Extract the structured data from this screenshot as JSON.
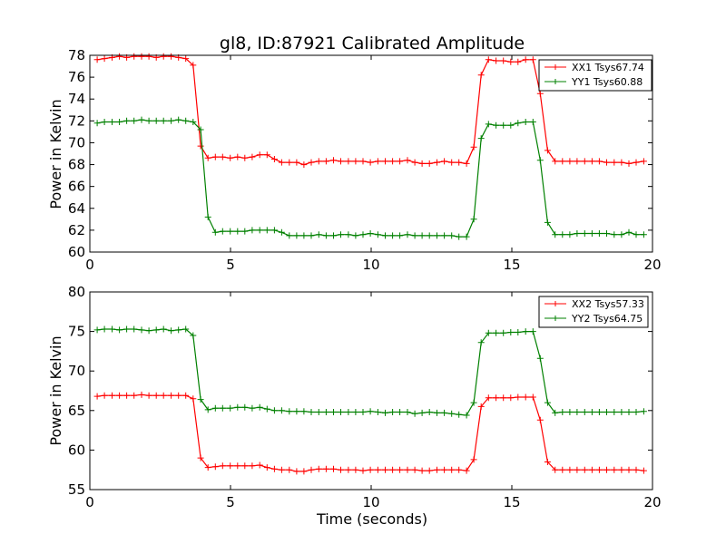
{
  "chart_data": [
    {
      "type": "line",
      "title": "gl8, ID:87921 Calibrated Amplitude",
      "xlabel": "",
      "ylabel": "Power in Kelvin",
      "xlim": [
        0,
        20
      ],
      "ylim": [
        60,
        78
      ],
      "xticks": [
        "0",
        "5",
        "10",
        "15",
        "20"
      ],
      "yticks": [
        "60",
        "62",
        "64",
        "66",
        "68",
        "70",
        "72",
        "74",
        "76",
        "78"
      ],
      "grid": false,
      "legend_position": "top-right",
      "x": [
        0.26,
        0.52,
        0.79,
        1.05,
        1.31,
        1.57,
        1.84,
        2.1,
        2.36,
        2.62,
        2.89,
        3.15,
        3.41,
        3.67,
        3.94,
        4.2,
        4.46,
        4.72,
        4.99,
        5.25,
        5.51,
        5.77,
        6.04,
        6.3,
        6.56,
        6.82,
        7.09,
        7.35,
        7.61,
        7.87,
        8.14,
        8.4,
        8.66,
        8.92,
        9.19,
        9.45,
        9.71,
        9.97,
        10.24,
        10.5,
        10.76,
        11.02,
        11.29,
        11.55,
        11.81,
        12.07,
        12.34,
        12.6,
        12.86,
        13.12,
        13.39,
        13.65,
        13.91,
        14.17,
        14.44,
        14.7,
        14.96,
        15.22,
        15.49,
        15.75,
        16.01,
        16.27,
        16.54,
        16.8,
        17.06,
        17.32,
        17.59,
        17.85,
        18.11,
        18.37,
        18.64,
        18.9,
        19.16,
        19.42,
        19.69
      ],
      "series": [
        {
          "name": "XX1 Tsys67.74",
          "color": "#ff0000",
          "values": [
            77.6,
            77.7,
            77.8,
            77.9,
            77.8,
            77.9,
            77.9,
            77.9,
            77.8,
            77.9,
            77.9,
            77.8,
            77.7,
            77.1,
            69.7,
            68.6,
            68.7,
            68.7,
            68.6,
            68.7,
            68.6,
            68.7,
            68.9,
            68.9,
            68.5,
            68.2,
            68.2,
            68.2,
            68.0,
            68.2,
            68.3,
            68.3,
            68.4,
            68.3,
            68.3,
            68.3,
            68.3,
            68.2,
            68.3,
            68.3,
            68.3,
            68.3,
            68.4,
            68.2,
            68.1,
            68.1,
            68.2,
            68.3,
            68.2,
            68.2,
            68.1,
            69.6,
            76.2,
            77.6,
            77.5,
            77.5,
            77.4,
            77.4,
            77.6,
            77.6,
            74.5,
            69.3,
            68.3,
            68.3,
            68.3,
            68.3,
            68.3,
            68.3,
            68.3,
            68.2,
            68.2,
            68.2,
            68.1,
            68.2,
            68.3
          ]
        },
        {
          "name": "YY1 Tsys60.88",
          "color": "#008000",
          "values": [
            71.8,
            71.9,
            71.9,
            71.9,
            72.0,
            72.0,
            72.1,
            72.0,
            72.0,
            72.0,
            72.0,
            72.1,
            72.0,
            71.9,
            71.2,
            63.2,
            61.8,
            61.9,
            61.9,
            61.9,
            61.9,
            62.0,
            62.0,
            62.0,
            62.0,
            61.8,
            61.5,
            61.5,
            61.5,
            61.5,
            61.6,
            61.5,
            61.5,
            61.6,
            61.6,
            61.5,
            61.6,
            61.7,
            61.6,
            61.5,
            61.5,
            61.5,
            61.6,
            61.5,
            61.5,
            61.5,
            61.5,
            61.5,
            61.5,
            61.4,
            61.4,
            63.0,
            70.4,
            71.7,
            71.6,
            71.6,
            71.6,
            71.8,
            71.9,
            71.9,
            68.4,
            62.7,
            61.6,
            61.6,
            61.6,
            61.7,
            61.7,
            61.7,
            61.7,
            61.7,
            61.6,
            61.6,
            61.8,
            61.6,
            61.6
          ]
        }
      ]
    },
    {
      "type": "line",
      "title": "",
      "xlabel": "Time (seconds)",
      "ylabel": "Power in Kelvin",
      "xlim": [
        0,
        20
      ],
      "ylim": [
        55,
        80
      ],
      "xticks": [
        "0",
        "5",
        "10",
        "15",
        "20"
      ],
      "yticks": [
        "55",
        "60",
        "65",
        "70",
        "75",
        "80"
      ],
      "grid": false,
      "legend_position": "top-right",
      "x": [
        0.26,
        0.52,
        0.79,
        1.05,
        1.31,
        1.57,
        1.84,
        2.1,
        2.36,
        2.62,
        2.89,
        3.15,
        3.41,
        3.67,
        3.94,
        4.2,
        4.46,
        4.72,
        4.99,
        5.25,
        5.51,
        5.77,
        6.04,
        6.3,
        6.56,
        6.82,
        7.09,
        7.35,
        7.61,
        7.87,
        8.14,
        8.4,
        8.66,
        8.92,
        9.19,
        9.45,
        9.71,
        9.97,
        10.24,
        10.5,
        10.76,
        11.02,
        11.29,
        11.55,
        11.81,
        12.07,
        12.34,
        12.6,
        12.86,
        13.12,
        13.39,
        13.65,
        13.91,
        14.17,
        14.44,
        14.7,
        14.96,
        15.22,
        15.49,
        15.75,
        16.01,
        16.27,
        16.54,
        16.8,
        17.06,
        17.32,
        17.59,
        17.85,
        18.11,
        18.37,
        18.64,
        18.9,
        19.16,
        19.42,
        19.69
      ],
      "series": [
        {
          "name": "XX2 Tsys57.33",
          "color": "#ff0000",
          "values": [
            66.8,
            66.9,
            66.9,
            66.9,
            66.9,
            66.9,
            67.0,
            66.9,
            66.9,
            66.9,
            66.9,
            66.9,
            66.9,
            66.5,
            59.0,
            57.8,
            57.9,
            58.0,
            58.0,
            58.0,
            58.0,
            58.0,
            58.1,
            57.8,
            57.6,
            57.5,
            57.5,
            57.3,
            57.3,
            57.5,
            57.6,
            57.6,
            57.6,
            57.5,
            57.5,
            57.5,
            57.4,
            57.5,
            57.5,
            57.5,
            57.5,
            57.5,
            57.5,
            57.5,
            57.4,
            57.4,
            57.5,
            57.5,
            57.5,
            57.5,
            57.4,
            58.8,
            65.5,
            66.6,
            66.6,
            66.6,
            66.6,
            66.7,
            66.7,
            66.7,
            63.8,
            58.5,
            57.5,
            57.5,
            57.5,
            57.5,
            57.5,
            57.5,
            57.5,
            57.5,
            57.5,
            57.5,
            57.5,
            57.5,
            57.4
          ]
        },
        {
          "name": "YY2 Tsys64.75",
          "color": "#008000",
          "values": [
            75.2,
            75.3,
            75.3,
            75.2,
            75.3,
            75.3,
            75.2,
            75.1,
            75.2,
            75.3,
            75.1,
            75.2,
            75.3,
            74.5,
            66.4,
            65.1,
            65.3,
            65.3,
            65.3,
            65.4,
            65.4,
            65.3,
            65.4,
            65.2,
            65.0,
            65.0,
            64.9,
            64.9,
            64.9,
            64.8,
            64.8,
            64.8,
            64.8,
            64.8,
            64.8,
            64.8,
            64.8,
            64.9,
            64.8,
            64.7,
            64.8,
            64.8,
            64.8,
            64.6,
            64.7,
            64.8,
            64.7,
            64.7,
            64.6,
            64.5,
            64.4,
            66.0,
            73.6,
            74.8,
            74.8,
            74.8,
            74.9,
            74.9,
            75.0,
            75.0,
            71.6,
            66.0,
            64.7,
            64.8,
            64.8,
            64.8,
            64.8,
            64.8,
            64.8,
            64.8,
            64.8,
            64.8,
            64.8,
            64.8,
            64.9
          ]
        }
      ]
    }
  ]
}
